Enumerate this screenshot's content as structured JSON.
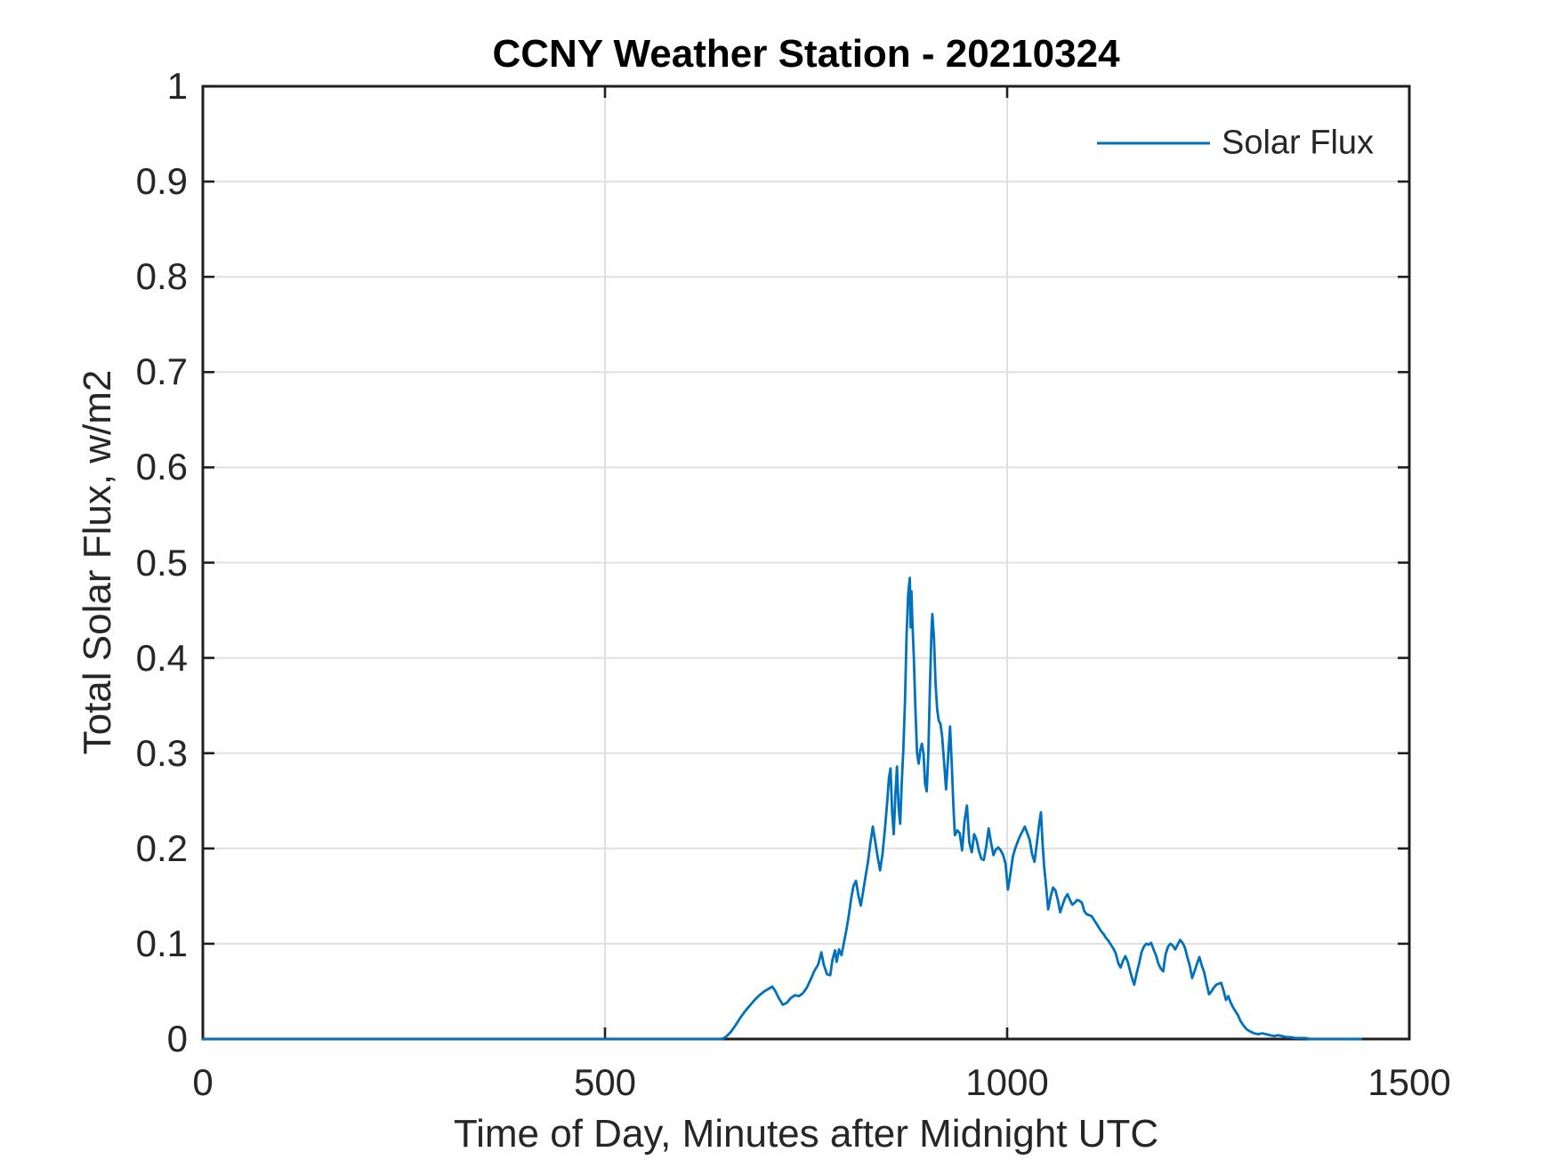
{
  "chart": {
    "title": "CCNY Weather Station - 20210324",
    "xlabel": "Time of Day, Minutes after Midnight UTC",
    "ylabel": "Total Solar Flux, w/m2",
    "legend": [
      "Solar Flux"
    ]
  },
  "colors": {
    "line": "#0072BD",
    "grid": "#e0e0e0",
    "axis": "#1f1f1f",
    "text": "#262626",
    "background": "#ffffff"
  },
  "chart_data": {
    "type": "line",
    "title": "CCNY Weather Station - 20210324",
    "xlabel": "Time of Day, Minutes after Midnight UTC",
    "ylabel": "Total Solar Flux, w/m2",
    "xlim": [
      0,
      1500
    ],
    "ylim": [
      0,
      1
    ],
    "xticks": [
      0,
      500,
      1000,
      1500
    ],
    "yticks": [
      0,
      0.1,
      0.2,
      0.3,
      0.4,
      0.5,
      0.6,
      0.7,
      0.8,
      0.9,
      1
    ],
    "xtick_labels": [
      "0",
      "500",
      "1000",
      "1500"
    ],
    "ytick_labels": [
      "0",
      "0.1",
      "0.2",
      "0.3",
      "0.4",
      "0.5",
      "0.6",
      "0.7",
      "0.8",
      "0.9",
      "1"
    ],
    "grid": true,
    "legend_position": "northeast",
    "series": [
      {
        "name": "Solar Flux",
        "color": "#0072BD",
        "x": [
          0,
          60,
          120,
          180,
          240,
          300,
          360,
          420,
          480,
          540,
          600,
          630,
          645,
          650,
          656,
          662,
          668,
          674,
          680,
          686,
          692,
          698,
          704,
          708,
          712,
          716,
          721,
          726,
          731,
          736,
          741,
          746,
          751,
          756,
          760,
          765,
          769,
          772,
          776,
          780,
          783,
          786,
          788,
          791,
          794,
          797,
          800,
          803,
          806,
          809,
          812,
          815,
          818,
          821,
          824,
          827,
          830,
          833,
          836,
          839,
          842,
          845,
          848,
          851,
          853,
          855,
          857,
          859,
          861,
          863,
          865,
          867,
          869,
          871,
          873,
          875,
          877,
          879,
          880,
          881,
          882,
          884,
          886,
          888,
          890,
          892,
          894,
          896,
          898,
          900,
          902,
          904,
          906,
          907,
          909,
          911,
          913,
          915,
          917,
          919,
          922,
          924,
          927,
          929,
          931,
          933,
          935,
          938,
          941,
          944,
          947,
          950,
          953,
          956,
          959,
          962,
          965,
          968,
          971,
          974,
          977,
          980,
          983,
          986,
          989,
          992,
          995,
          998,
          1000,
          1001,
          1004,
          1007,
          1010,
          1013,
          1016,
          1019,
          1022,
          1025,
          1028,
          1031,
          1034,
          1037,
          1040,
          1042,
          1044,
          1046,
          1048,
          1051,
          1054,
          1057,
          1060,
          1063,
          1066,
          1069,
          1072,
          1075,
          1078,
          1081,
          1084,
          1087,
          1090,
          1093,
          1096,
          1099,
          1102,
          1105,
          1108,
          1111,
          1114,
          1117,
          1120,
          1123,
          1126,
          1129,
          1132,
          1135,
          1138,
          1141,
          1144,
          1147,
          1150,
          1153,
          1156,
          1158,
          1161,
          1164,
          1167,
          1170,
          1173,
          1176,
          1179,
          1182,
          1185,
          1188,
          1191,
          1194,
          1197,
          1200,
          1203,
          1206,
          1209,
          1212,
          1215,
          1218,
          1221,
          1224,
          1227,
          1230,
          1233,
          1236,
          1239,
          1242,
          1245,
          1248,
          1251,
          1254,
          1257,
          1260,
          1263,
          1266,
          1269,
          1272,
          1275,
          1278,
          1281,
          1284,
          1287,
          1290,
          1294,
          1298,
          1302,
          1307,
          1312,
          1317,
          1322,
          1327,
          1332,
          1337,
          1342,
          1347,
          1352,
          1358,
          1364,
          1370,
          1377,
          1385,
          1395,
          1410,
          1425,
          1440
        ],
        "y": [
          0,
          0,
          0,
          0,
          0,
          0,
          0,
          0,
          0,
          0,
          0,
          0,
          0,
          0.002,
          0.007,
          0.014,
          0.022,
          0.029,
          0.035,
          0.041,
          0.046,
          0.05,
          0.053,
          0.055,
          0.05,
          0.043,
          0.036,
          0.038,
          0.043,
          0.046,
          0.045,
          0.048,
          0.054,
          0.063,
          0.071,
          0.078,
          0.091,
          0.078,
          0.068,
          0.067,
          0.084,
          0.093,
          0.081,
          0.094,
          0.088,
          0.101,
          0.114,
          0.129,
          0.147,
          0.161,
          0.166,
          0.151,
          0.14,
          0.155,
          0.171,
          0.186,
          0.206,
          0.223,
          0.207,
          0.191,
          0.177,
          0.194,
          0.22,
          0.25,
          0.274,
          0.284,
          0.238,
          0.215,
          0.256,
          0.286,
          0.244,
          0.226,
          0.27,
          0.305,
          0.355,
          0.425,
          0.468,
          0.484,
          0.432,
          0.47,
          0.442,
          0.4,
          0.345,
          0.3,
          0.289,
          0.303,
          0.31,
          0.3,
          0.268,
          0.26,
          0.3,
          0.37,
          0.43,
          0.446,
          0.421,
          0.373,
          0.346,
          0.334,
          0.331,
          0.319,
          0.286,
          0.262,
          0.301,
          0.328,
          0.291,
          0.248,
          0.214,
          0.219,
          0.216,
          0.198,
          0.229,
          0.245,
          0.206,
          0.196,
          0.215,
          0.209,
          0.197,
          0.189,
          0.188,
          0.202,
          0.221,
          0.206,
          0.193,
          0.199,
          0.201,
          0.198,
          0.193,
          0.184,
          0.165,
          0.157,
          0.173,
          0.191,
          0.2,
          0.207,
          0.213,
          0.218,
          0.223,
          0.216,
          0.209,
          0.194,
          0.186,
          0.206,
          0.227,
          0.238,
          0.206,
          0.181,
          0.164,
          0.136,
          0.149,
          0.159,
          0.156,
          0.146,
          0.133,
          0.141,
          0.148,
          0.152,
          0.146,
          0.141,
          0.143,
          0.146,
          0.145,
          0.143,
          0.134,
          0.131,
          0.13,
          0.129,
          0.125,
          0.121,
          0.117,
          0.113,
          0.11,
          0.106,
          0.103,
          0.099,
          0.095,
          0.09,
          0.08,
          0.075,
          0.082,
          0.087,
          0.081,
          0.071,
          0.062,
          0.057,
          0.069,
          0.079,
          0.091,
          0.097,
          0.1,
          0.099,
          0.101,
          0.094,
          0.088,
          0.079,
          0.074,
          0.071,
          0.089,
          0.097,
          0.1,
          0.098,
          0.094,
          0.099,
          0.104,
          0.101,
          0.096,
          0.086,
          0.077,
          0.064,
          0.071,
          0.079,
          0.086,
          0.077,
          0.07,
          0.058,
          0.047,
          0.05,
          0.054,
          0.057,
          0.058,
          0.059,
          0.051,
          0.041,
          0.045,
          0.038,
          0.033,
          0.029,
          0.025,
          0.019,
          0.014,
          0.01,
          0.008,
          0.006,
          0.005,
          0.006,
          0.005,
          0.004,
          0.003,
          0.004,
          0.003,
          0.002,
          0.002,
          0.001,
          0.001,
          0.001,
          0,
          0,
          0,
          0,
          0,
          0
        ]
      }
    ]
  }
}
